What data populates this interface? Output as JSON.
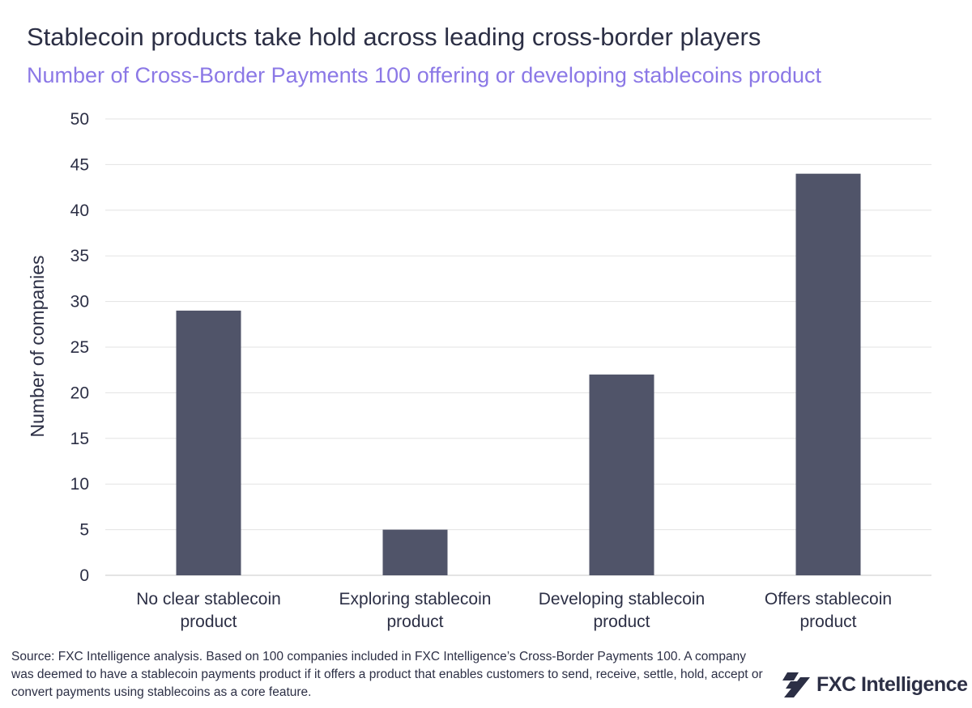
{
  "title": "Stablecoin products take hold across leading cross-border players",
  "subtitle": "Number of Cross-Border Payments 100 offering or developing stablecoins product",
  "source": "Source: FXC Intelligence analysis. Based on 100 companies included in FXC Intelligence’s Cross-Border Payments 100. A company was deemed to have a stablecoin payments product if it offers a product that enables customers to send, receive, settle, hold, accept or convert payments using stablecoins as a core feature.",
  "logo": {
    "text": "FXC Intelligence",
    "icon": "fxc-logo-icon"
  },
  "colors": {
    "bar": "#505469",
    "subtitle": "#8b78e6",
    "grid": "#e3e3e3",
    "text": "#2c2f45"
  },
  "chart_data": {
    "type": "bar",
    "categories": [
      [
        "No clear stablecoin",
        "product"
      ],
      [
        "Exploring stablecoin",
        "product"
      ],
      [
        "Developing stablecoin",
        "product"
      ],
      [
        "Offers stablecoin",
        "product"
      ]
    ],
    "values": [
      29,
      5,
      22,
      44
    ],
    "ylabel": "Number of companies",
    "xlabel": "",
    "ylim": [
      0,
      50
    ],
    "yticks": [
      0,
      5,
      10,
      15,
      20,
      25,
      30,
      35,
      40,
      45,
      50
    ],
    "grid": true,
    "legend": "none"
  }
}
